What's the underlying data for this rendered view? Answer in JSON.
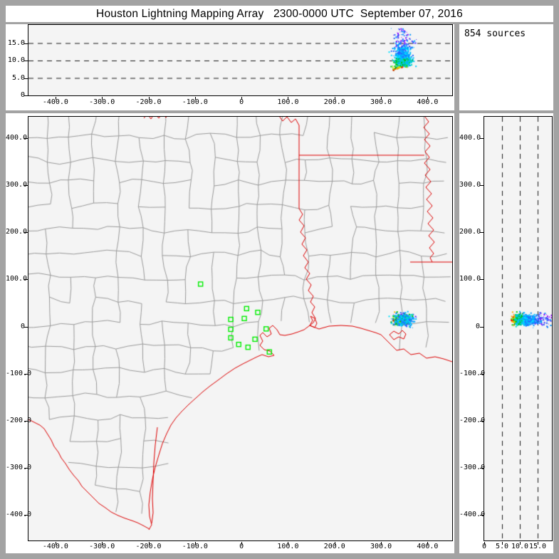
{
  "title": "Houston Lightning Mapping Array   2300-0000 UTC  September 07, 2016",
  "sources_panel": {
    "label": "854 sources",
    "count": 854
  },
  "colors": {
    "background_gray": "#a3a3a3",
    "panel_white": "#ffffff",
    "plot_background": "#f4f4f4",
    "state_border_red": "#dd0000",
    "county_line_gray": "#9a9a9a",
    "station_green": "#00ee00",
    "palette_low_alt": [
      "#00c800",
      "#64dc00",
      "#c8e600",
      "#ffb400",
      "#ff5000",
      "#e60000"
    ],
    "palette_mid_alt": [
      "#00c800",
      "#00dcb4",
      "#00c8ff",
      "#00b4ff"
    ],
    "palette_high_alt": [
      "#00c8ff",
      "#0096ff",
      "#2864ff",
      "#00e0ff"
    ],
    "palette_top_alt": [
      "#2864ff",
      "#0096ff",
      "#4b32ff"
    ],
    "palette_extreme": "#8c00ff"
  },
  "cluster": {
    "count": 854,
    "center_ew_km": 345,
    "center_ns_km": 16,
    "ew_spread_km": 9,
    "ns_spread_km": 5.5,
    "alt_core_km": 10.8,
    "alt_min_km": 7.2,
    "alt_max_km": 19.4,
    "description": "single storm cell near 345 km east, 16 km north, altitudes 7-19 km"
  },
  "chart_data": [
    {
      "id": "ew-altitude",
      "type": "scatter",
      "orientation": "altitude vs east-west distance",
      "x_tick_labels": [
        "-400.0",
        "-300.0",
        "-200.0",
        "-100.0",
        "0",
        "100.0",
        "200.0",
        "300.0",
        "400.0"
      ],
      "x_tick_values": [
        -400,
        -300,
        -200,
        -100,
        0,
        100,
        200,
        300,
        400
      ],
      "y_tick_labels": [
        "15.0",
        "10.0",
        "5.0",
        "0"
      ],
      "y_tick_values": [
        15,
        10,
        5,
        0
      ],
      "x_range": [
        -458,
        453
      ],
      "y_range": [
        0,
        20.2
      ],
      "grid": "horizontal-dashed",
      "grid_values": [
        5,
        10,
        15
      ]
    },
    {
      "id": "plan-view",
      "type": "scatter",
      "orientation": "north-south vs east-west distance (map)",
      "x_tick_labels": [
        "-400.0",
        "-300.0",
        "-200.0",
        "-100.0",
        "0",
        "100.0",
        "200.0",
        "300.0",
        "400.0"
      ],
      "x_tick_values": [
        -400,
        -300,
        -200,
        -100,
        0,
        100,
        200,
        300,
        400
      ],
      "y_tick_labels": [
        "400.0",
        "300.0",
        "200.0",
        "100.0",
        "0",
        "-100.0",
        "-200.0",
        "-300.0",
        "-400.0"
      ],
      "y_tick_values": [
        400,
        300,
        200,
        100,
        0,
        -100,
        -200,
        -300,
        -400
      ],
      "x_range": [
        -458,
        453
      ],
      "y_range": [
        -454,
        445
      ],
      "grid": "none",
      "map_features": [
        "county-lines",
        "state-borders",
        "gulf-coastline",
        "rio-grande"
      ],
      "stations_km": [
        [
          -88,
          90
        ],
        [
          11,
          38
        ],
        [
          35,
          30
        ],
        [
          6,
          17
        ],
        [
          -23,
          15
        ],
        [
          -23,
          -6
        ],
        [
          -23,
          -24
        ],
        [
          -6,
          -38
        ],
        [
          14,
          -44
        ],
        [
          29,
          -27
        ],
        [
          53,
          -5
        ],
        [
          60,
          -54
        ]
      ]
    },
    {
      "id": "ns-altitude",
      "type": "scatter",
      "orientation": "north-south distance vs altitude",
      "x_tick_labels": [
        "0",
        "5.0",
        "10.0",
        "15.0"
      ],
      "x_tick_values": [
        0,
        5,
        10,
        15
      ],
      "y_tick_labels": [
        "400.0",
        "300.0",
        "200.0",
        "100.0",
        "0",
        "-100.0",
        "-200.0",
        "-300.0",
        "-400.0"
      ],
      "y_tick_values": [
        400,
        300,
        200,
        100,
        0,
        -100,
        -200,
        -300,
        -400
      ],
      "x_range": [
        0,
        19
      ],
      "y_range": [
        -454,
        445
      ],
      "grid": "vertical-dashed",
      "grid_values": [
        5,
        10,
        15
      ]
    }
  ]
}
